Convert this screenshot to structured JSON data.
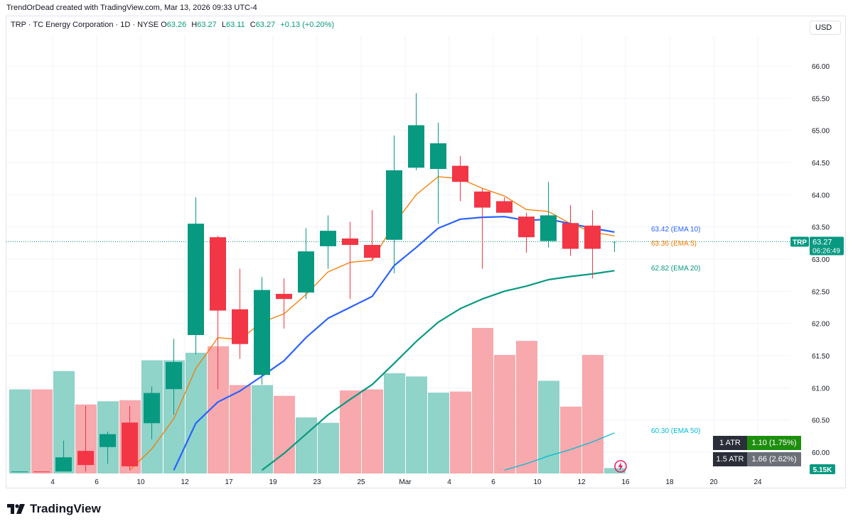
{
  "attribution": "TrendOrDead created with TradingView.com, Mar 13, 2026 09:33 UTC-4",
  "legend": {
    "symbol_line": "TRP · TC Energy Corporation · 1D · NYSE",
    "o_label": "O",
    "o_value": "63.26",
    "h_label": "H",
    "h_value": "63.27",
    "l_label": "L",
    "l_value": "63.11",
    "c_label": "C",
    "c_value": "63.27",
    "change": "+0.13 (+0.20%)"
  },
  "currency": "USD",
  "price_tag": {
    "symbol": "TRP",
    "price": "63.27",
    "countdown": "06:26:49",
    "color": "#089981"
  },
  "volume_tag": "5.15K",
  "atr": [
    {
      "label": "1 ATR",
      "value": "1.10 (1.75%)",
      "color": "#1e8e0e"
    },
    {
      "label": "1.5 ATR",
      "value": "1.66 (2.62%)",
      "color": "#6b6f78"
    }
  ],
  "brand": "TradingView",
  "colors": {
    "up": "#089981",
    "down": "#f23645",
    "up_vol": "#8fd3c9",
    "down_vol": "#f7a9ad",
    "ema5": "#f57c00",
    "ema10": "#2962ff",
    "ema20": "#089981",
    "ema50": "#00bcd4"
  },
  "chart_data": {
    "type": "candlestick",
    "symbol": "TRP",
    "interval": "1D",
    "yrange": [
      59.7,
      66.45
    ],
    "ytick_labels": [
      "66.00",
      "65.50",
      "65.00",
      "64.50",
      "64.00",
      "63.50",
      "63.00",
      "62.50",
      "62.00",
      "61.50",
      "61.00",
      "60.50",
      "60.00"
    ],
    "ytick_values": [
      66.0,
      65.5,
      65.0,
      64.5,
      64.0,
      63.5,
      63.0,
      62.5,
      62.0,
      61.5,
      61.0,
      60.5,
      60.0
    ],
    "xticks": [
      {
        "label": "4",
        "slot": 1.5
      },
      {
        "label": "6",
        "slot": 3.5
      },
      {
        "label": "10",
        "slot": 5.5
      },
      {
        "label": "12",
        "slot": 7.5
      },
      {
        "label": "17",
        "slot": 9.5
      },
      {
        "label": "19",
        "slot": 11.5
      },
      {
        "label": "23",
        "slot": 13.5
      },
      {
        "label": "25",
        "slot": 15.5
      },
      {
        "label": "Mar",
        "slot": 17.5
      },
      {
        "label": "4",
        "slot": 19.5
      },
      {
        "label": "6",
        "slot": 21.5
      },
      {
        "label": "10",
        "slot": 23.5
      },
      {
        "label": "12",
        "slot": 25.5
      },
      {
        "label": "16",
        "slot": 27.5
      },
      {
        "label": "18",
        "slot": 29.5
      },
      {
        "label": "20",
        "slot": 31.5
      },
      {
        "label": "24",
        "slot": 33.5
      }
    ],
    "candles": [
      {
        "o": 59.7,
        "h": 59.7,
        "l": 59.7,
        "c": 59.7,
        "vol": 0.78,
        "dir": "up"
      },
      {
        "o": 59.7,
        "h": 59.7,
        "l": 59.7,
        "c": 59.7,
        "vol": 0.78,
        "dir": "down"
      },
      {
        "o": 59.7,
        "h": 60.18,
        "l": 59.7,
        "c": 59.92,
        "vol": 0.95,
        "dir": "up"
      },
      {
        "o": 60.02,
        "h": 60.72,
        "l": 59.7,
        "c": 59.8,
        "vol": 0.64,
        "dir": "down"
      },
      {
        "o": 60.08,
        "h": 60.32,
        "l": 59.82,
        "c": 60.28,
        "vol": 0.67,
        "dir": "up"
      },
      {
        "o": 60.46,
        "h": 60.72,
        "l": 59.72,
        "c": 59.78,
        "vol": 0.68,
        "dir": "down"
      },
      {
        "o": 60.45,
        "h": 61.02,
        "l": 60.2,
        "c": 60.92,
        "vol": 1.05,
        "dir": "up"
      },
      {
        "o": 60.98,
        "h": 61.76,
        "l": 60.58,
        "c": 61.4,
        "vol": 1.05,
        "dir": "up"
      },
      {
        "o": 61.82,
        "h": 63.96,
        "l": 61.52,
        "c": 63.55,
        "vol": 1.12,
        "dir": "up"
      },
      {
        "o": 63.34,
        "h": 63.36,
        "l": 60.98,
        "c": 62.2,
        "vol": 1.18,
        "dir": "down"
      },
      {
        "o": 62.22,
        "h": 62.85,
        "l": 61.45,
        "c": 61.68,
        "vol": 0.82,
        "dir": "down"
      },
      {
        "o": 61.2,
        "h": 62.72,
        "l": 61.05,
        "c": 62.52,
        "vol": 0.82,
        "dir": "up"
      },
      {
        "o": 62.46,
        "h": 62.7,
        "l": 61.92,
        "c": 62.38,
        "vol": 0.72,
        "dir": "down"
      },
      {
        "o": 62.48,
        "h": 63.48,
        "l": 62.38,
        "c": 63.12,
        "vol": 0.52,
        "dir": "up"
      },
      {
        "o": 63.2,
        "h": 63.68,
        "l": 62.85,
        "c": 63.44,
        "vol": 0.47,
        "dir": "up"
      },
      {
        "o": 63.32,
        "h": 63.58,
        "l": 62.38,
        "c": 63.22,
        "vol": 0.77,
        "dir": "down"
      },
      {
        "o": 63.22,
        "h": 63.76,
        "l": 62.98,
        "c": 63.02,
        "vol": 0.78,
        "dir": "down"
      },
      {
        "o": 63.3,
        "h": 64.92,
        "l": 62.78,
        "c": 64.38,
        "vol": 0.93,
        "dir": "up"
      },
      {
        "o": 64.42,
        "h": 65.58,
        "l": 64.38,
        "c": 65.08,
        "vol": 0.9,
        "dir": "up"
      },
      {
        "o": 64.4,
        "h": 65.12,
        "l": 63.55,
        "c": 64.8,
        "vol": 0.75,
        "dir": "up"
      },
      {
        "o": 64.45,
        "h": 64.6,
        "l": 63.9,
        "c": 64.2,
        "vol": 0.76,
        "dir": "down"
      },
      {
        "o": 64.05,
        "h": 64.1,
        "l": 62.85,
        "c": 63.8,
        "vol": 1.35,
        "dir": "down"
      },
      {
        "o": 63.9,
        "h": 63.96,
        "l": 63.72,
        "c": 63.72,
        "vol": 1.1,
        "dir": "down"
      },
      {
        "o": 63.66,
        "h": 63.72,
        "l": 63.1,
        "c": 63.34,
        "vol": 1.23,
        "dir": "down"
      },
      {
        "o": 63.28,
        "h": 64.2,
        "l": 63.18,
        "c": 63.68,
        "vol": 0.86,
        "dir": "up"
      },
      {
        "o": 63.56,
        "h": 63.84,
        "l": 63.05,
        "c": 63.16,
        "vol": 0.62,
        "dir": "down"
      },
      {
        "o": 63.52,
        "h": 63.76,
        "l": 62.7,
        "c": 63.16,
        "vol": 1.1,
        "dir": "down"
      },
      {
        "o": 63.26,
        "h": 63.27,
        "l": 63.11,
        "c": 63.27,
        "vol": 0.05,
        "dir": "up"
      }
    ],
    "ema": [
      {
        "name": "EMA 5",
        "label": "63.36 (EMA 5)",
        "color": "#f57c00",
        "width": 1.3,
        "values": [
          null,
          null,
          null,
          null,
          null,
          59.72,
          60.05,
          60.52,
          61.3,
          61.78,
          61.75,
          62.02,
          62.15,
          62.45,
          62.8,
          62.95,
          62.98,
          63.55,
          64.0,
          64.28,
          64.25,
          64.1,
          63.98,
          63.77,
          63.74,
          63.55,
          63.42,
          63.36
        ]
      },
      {
        "name": "EMA 10",
        "label": "63.42 (EMA 10)",
        "color": "#2962ff",
        "width": 2.2,
        "values": [
          null,
          null,
          null,
          null,
          null,
          null,
          null,
          59.72,
          60.45,
          60.78,
          60.95,
          61.18,
          61.42,
          61.78,
          62.08,
          62.25,
          62.42,
          62.9,
          63.18,
          63.48,
          63.62,
          63.65,
          63.66,
          63.6,
          63.62,
          63.55,
          63.48,
          63.42
        ]
      },
      {
        "name": "EMA 20",
        "label": "62.82 (EMA 20)",
        "color": "#089981",
        "width": 2.2,
        "values": [
          null,
          null,
          null,
          null,
          null,
          null,
          null,
          null,
          null,
          null,
          null,
          59.72,
          59.98,
          60.28,
          60.58,
          60.82,
          61.05,
          61.38,
          61.72,
          62.02,
          62.23,
          62.38,
          62.5,
          62.58,
          62.68,
          62.73,
          62.77,
          62.82
        ]
      },
      {
        "name": "EMA 50",
        "label": "60.30 (EMA 50)",
        "color": "#00bcd4",
        "width": 1.3,
        "values": [
          null,
          null,
          null,
          null,
          null,
          null,
          null,
          null,
          null,
          null,
          null,
          null,
          null,
          null,
          null,
          null,
          null,
          null,
          null,
          null,
          null,
          null,
          59.72,
          59.82,
          59.94,
          60.04,
          60.16,
          60.3
        ]
      }
    ],
    "ema_label_prices": [
      63.42,
      63.36,
      62.82,
      60.3
    ],
    "last_price": 63.27
  }
}
